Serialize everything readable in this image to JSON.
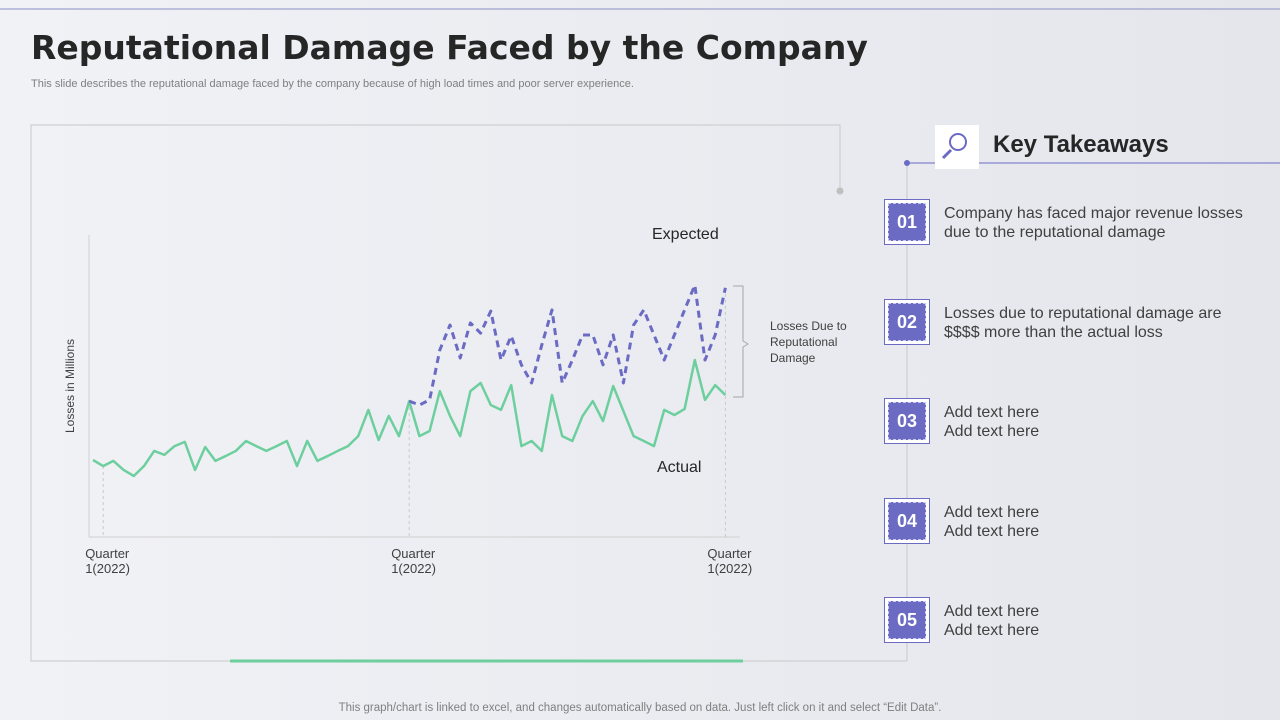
{
  "title": "Reputational Damage Faced by the Company",
  "subtitle": "This slide describes the reputational damage faced by the company because of high load times and poor server experience.",
  "footer": "This graph/chart is linked to excel,  and changes automatically based on data. Just left click on it and select “Edit Data”.",
  "chart_data": {
    "type": "line",
    "y_label": "Losses in Millions",
    "annotation": "Losses Due to\nReputational\nDamage",
    "ylim": [
      0,
      100
    ],
    "categories": [
      null,
      "Quarter\n1(2022)",
      null,
      null,
      null,
      null,
      null,
      null,
      null,
      null,
      null,
      null,
      null,
      null,
      null,
      null,
      null,
      null,
      null,
      null,
      null,
      null,
      null,
      null,
      null,
      null,
      null,
      null,
      null,
      null,
      null,
      "Quarter\n1(2022)",
      null,
      null,
      null,
      null,
      null,
      null,
      null,
      null,
      null,
      null,
      null,
      null,
      null,
      null,
      null,
      null,
      null,
      null,
      null,
      null,
      null,
      null,
      null,
      null,
      null,
      null,
      null,
      null,
      null,
      null,
      "Quarter\n1(2022)"
    ],
    "series": [
      {
        "name": "Actual",
        "color": "#6dcf9e",
        "dashed": false,
        "values": [
          25.5,
          23.5,
          25.2,
          22.2,
          20.2,
          23.5,
          28.5,
          27.2,
          30.1,
          31.5,
          22.2,
          29.8,
          25.2,
          26.8,
          28.5,
          31.8,
          30.1,
          28.5,
          30.1,
          31.8,
          23.5,
          31.8,
          25.2,
          26.8,
          28.5,
          30.1,
          33.4,
          42.1,
          32.1,
          40.1,
          33.4,
          45.0,
          33.4,
          35.1,
          48.3,
          40.1,
          33.4,
          48.3,
          51.0,
          43.7,
          42.1,
          50.3,
          30.1,
          31.8,
          28.5,
          47.0,
          33.4,
          31.8,
          40.1,
          45.0,
          38.4,
          50.0,
          41.7,
          33.4,
          31.8,
          30.1,
          42.1,
          40.4,
          42.4,
          58.6,
          45.4,
          50.3,
          47.0
        ]
      },
      {
        "name": "Expected",
        "color": "#6b6bc4",
        "dashed": true,
        "values": [
          null,
          null,
          null,
          null,
          null,
          null,
          null,
          null,
          null,
          null,
          null,
          null,
          null,
          null,
          null,
          null,
          null,
          null,
          null,
          null,
          null,
          null,
          null,
          null,
          null,
          null,
          null,
          null,
          null,
          null,
          null,
          45.0,
          43.7,
          45.4,
          61.9,
          70.2,
          59.3,
          70.9,
          67.5,
          74.8,
          58.6,
          66.6,
          57.0,
          51.0,
          63.6,
          75.2,
          51.0,
          58.6,
          66.9,
          66.9,
          57.0,
          66.9,
          51.0,
          70.2,
          75.2,
          66.9,
          58.6,
          66.9,
          75.2,
          83.4,
          58.6,
          66.9,
          82.5
        ]
      }
    ]
  },
  "takeaways": {
    "heading": "Key Takeaways",
    "items": [
      {
        "number": "01",
        "text": "Company has faced major revenue losses\ndue to the reputational damage"
      },
      {
        "number": "02",
        "text": "Losses due to reputational damage are\n$$$$ more than the actual loss"
      },
      {
        "number": "03",
        "text": "Add text here\nAdd text here"
      },
      {
        "number": "04",
        "text": "Add text here\nAdd text here"
      },
      {
        "number": "05",
        "text": "Add text here\nAdd text here"
      }
    ]
  }
}
